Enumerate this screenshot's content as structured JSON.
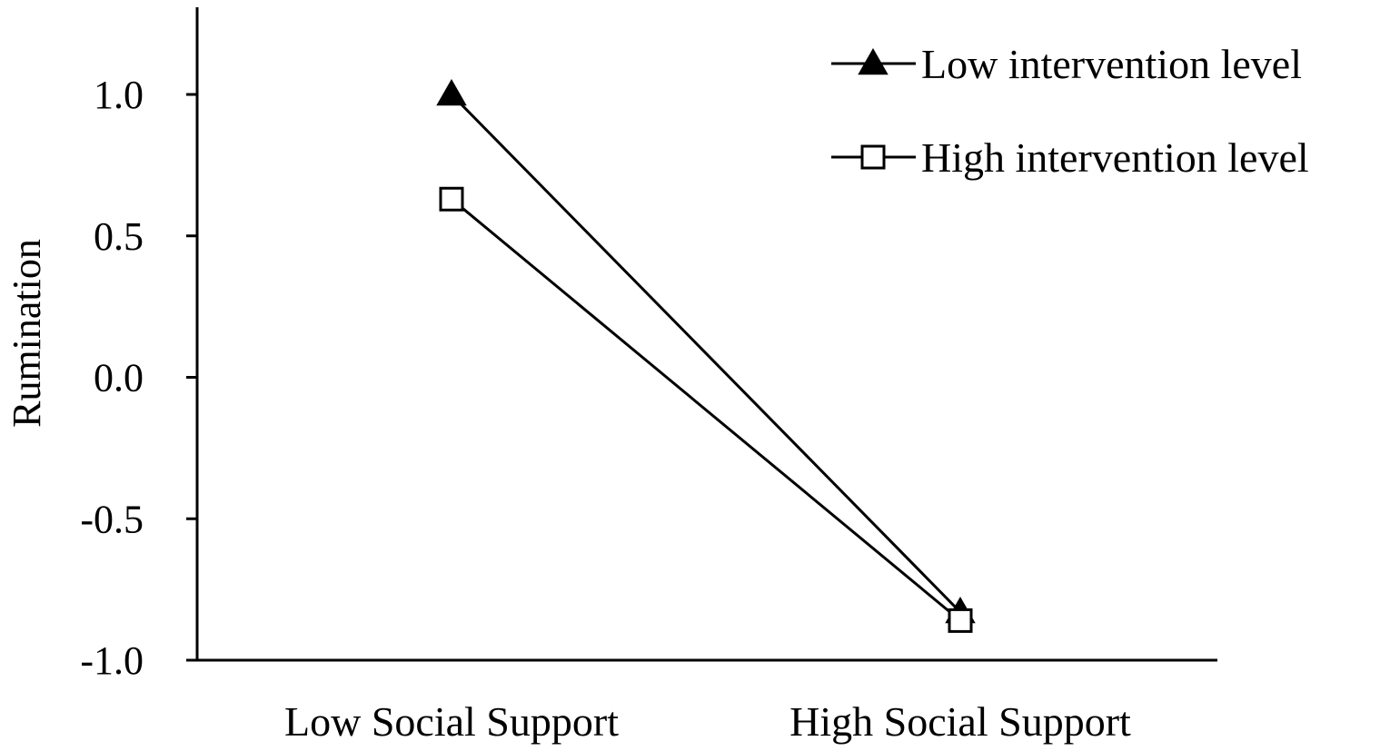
{
  "chart_data": {
    "type": "line",
    "title": "",
    "xlabel": "",
    "ylabel": "Rumination",
    "categories": [
      "Low Social Support",
      "High Social Support"
    ],
    "ylim": [
      -1.0,
      1.25
    ],
    "yticks": [
      1.0,
      0.5,
      0.0,
      -0.5,
      -1.0
    ],
    "ytick_labels": [
      "1.0",
      "0.5",
      "0.0",
      "-0.5",
      "-1.0"
    ],
    "grid": false,
    "legend_position": "top-right",
    "series": [
      {
        "name": "Low intervention level",
        "marker": "triangle-filled",
        "values": [
          1.0,
          -0.83
        ]
      },
      {
        "name": "High intervention level",
        "marker": "square-open",
        "values": [
          0.63,
          -0.86
        ]
      }
    ],
    "colors": {
      "line": "#000000",
      "background": "#ffffff"
    }
  }
}
